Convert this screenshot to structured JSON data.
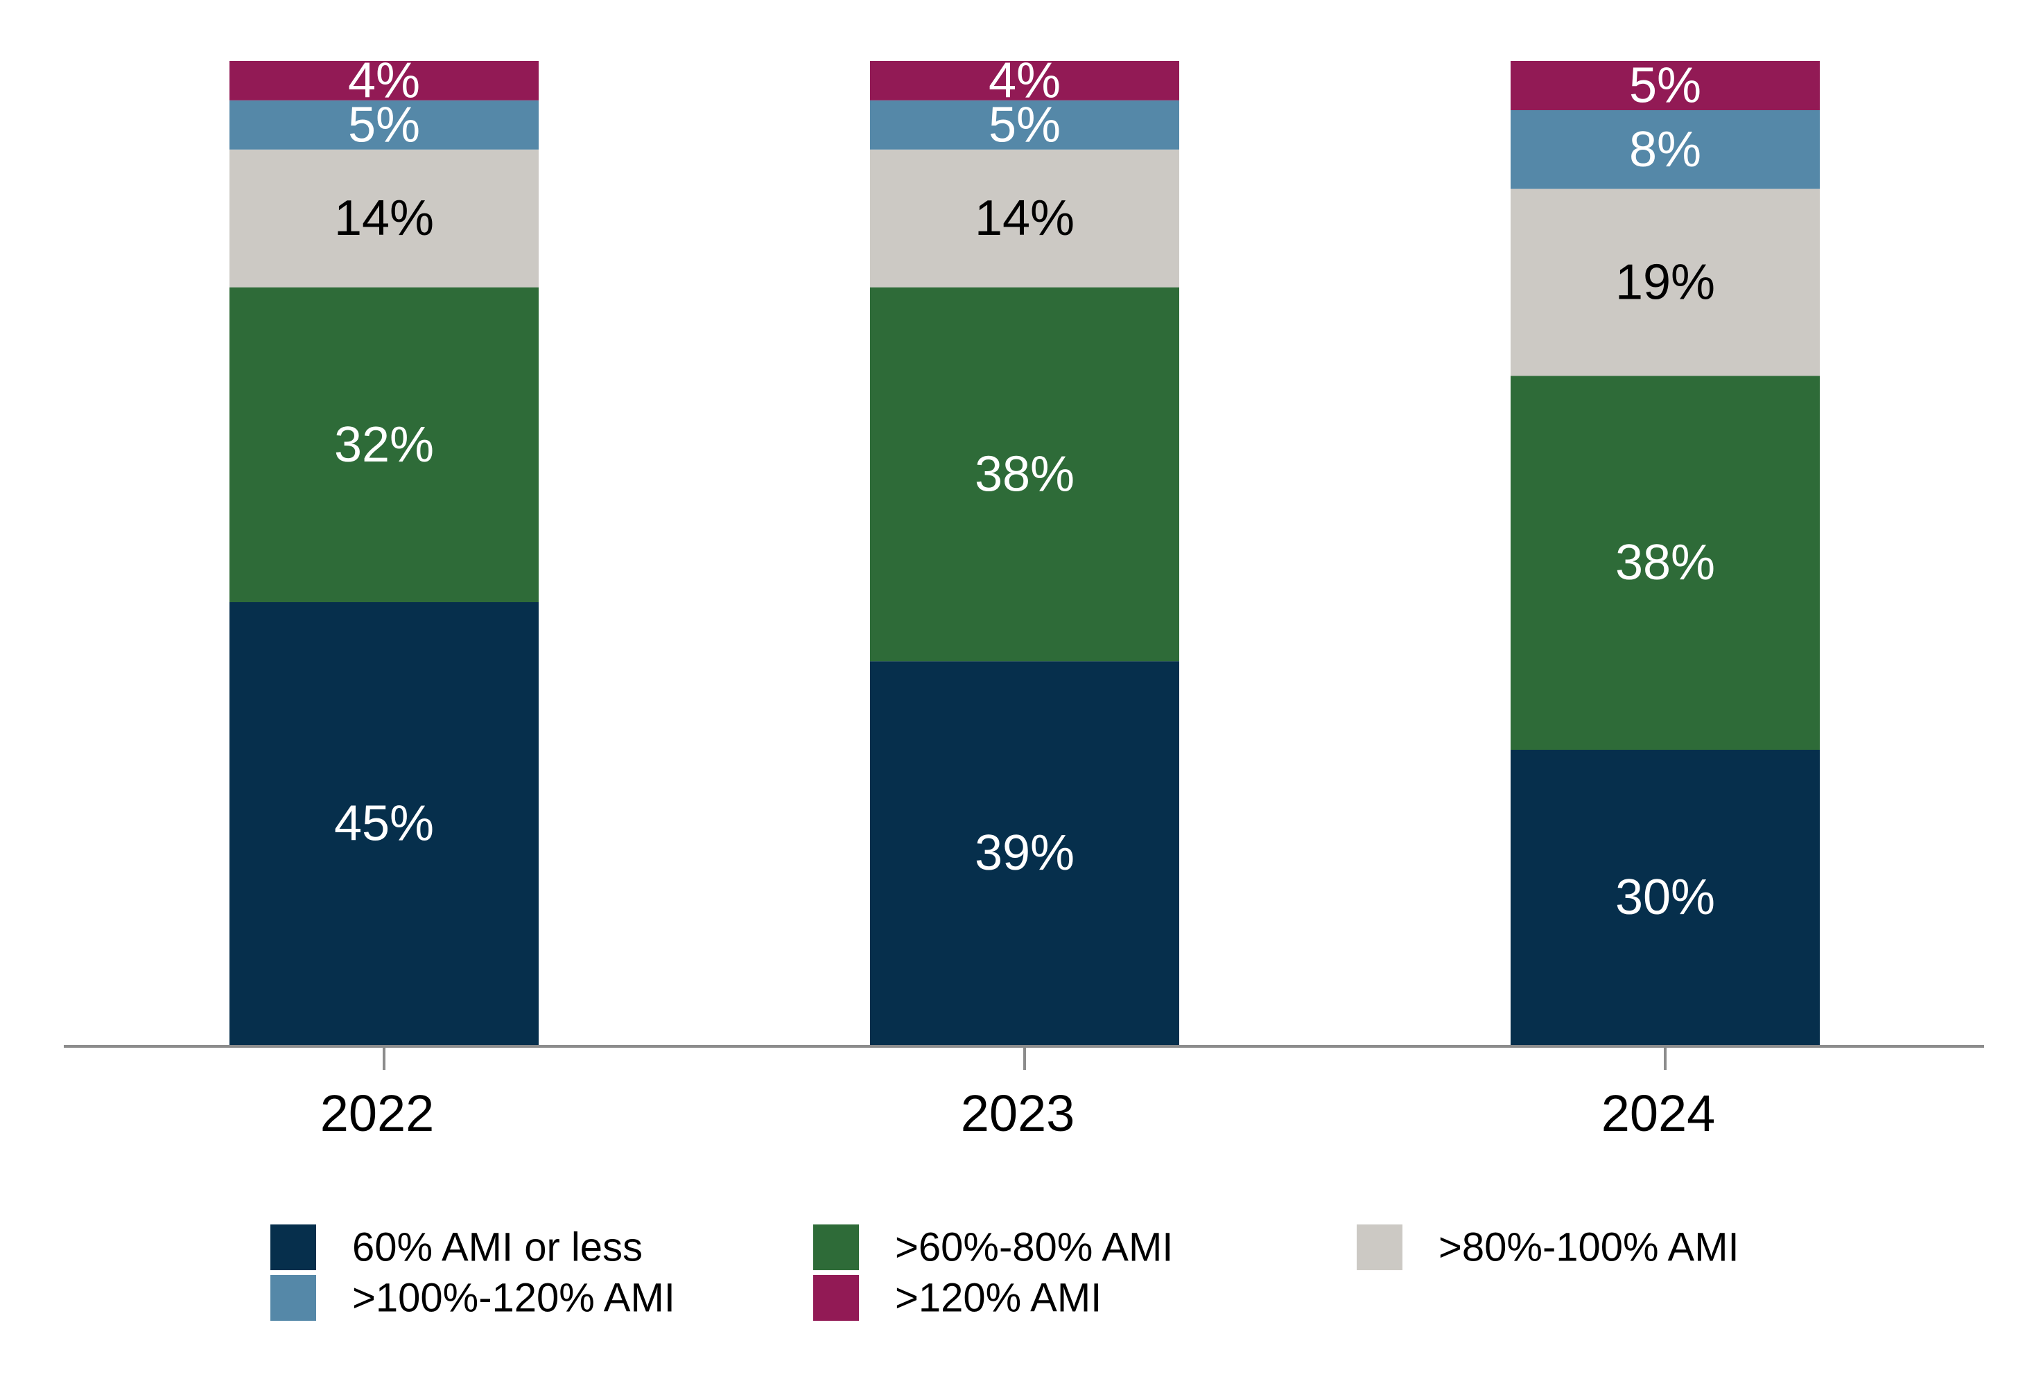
{
  "chart_data": {
    "type": "bar",
    "stacked": true,
    "categories": [
      "2022",
      "2023",
      "2024"
    ],
    "ylim": [
      0,
      100
    ],
    "grid": false,
    "legend_position": "bottom",
    "title": "",
    "xlabel": "",
    "ylabel": "",
    "series": [
      {
        "name": "60% AMI or less",
        "color": "#062f4c",
        "label_color": "#ffffff",
        "values": [
          45,
          39,
          30
        ],
        "labels": [
          "45%",
          "39%",
          "30%"
        ]
      },
      {
        "name": ">60%-80% AMI",
        "color": "#2e6b38",
        "label_color": "#ffffff",
        "values": [
          32,
          38,
          38
        ],
        "labels": [
          "32%",
          "38%",
          "38%"
        ]
      },
      {
        "name": ">80%-100% AMI",
        "color": "#ccc9c4",
        "label_color": "#000000",
        "values": [
          14,
          14,
          19
        ],
        "labels": [
          "14%",
          "14%",
          "19%"
        ]
      },
      {
        "name": ">100%-120% AMI",
        "color": "#5588a8",
        "label_color": "#ffffff",
        "values": [
          5,
          5,
          8
        ],
        "labels": [
          "5%",
          "5%",
          "8%"
        ]
      },
      {
        "name": ">120% AMI",
        "color": "#921a55",
        "label_color": "#ffffff",
        "values": [
          4,
          4,
          5
        ],
        "labels": [
          "4%",
          "4%",
          "5%"
        ]
      }
    ]
  }
}
